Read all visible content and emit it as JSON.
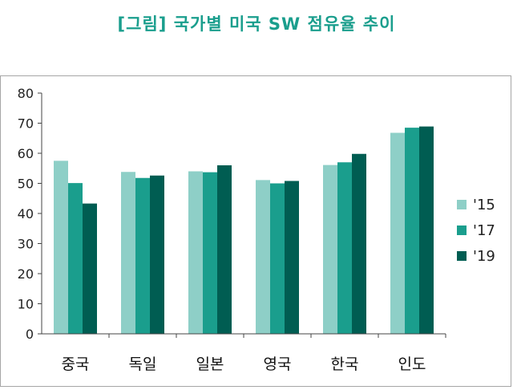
{
  "title": "[그림] 국가별 미국 SW 점유율 추이",
  "colors": {
    "title": "#1a9e8d",
    "s15": "#8ecfc7",
    "s17": "#1a9e8d",
    "s19": "#005d52"
  },
  "chart_data": {
    "type": "bar",
    "categories": [
      "중국",
      "독일",
      "일본",
      "영국",
      "한국",
      "인도"
    ],
    "series": [
      {
        "name": "'15",
        "values": [
          57.5,
          53.8,
          54.0,
          51.1,
          56.1,
          66.8
        ]
      },
      {
        "name": "'17",
        "values": [
          50.1,
          51.8,
          53.7,
          50.0,
          57.0,
          68.5
        ]
      },
      {
        "name": "'19",
        "values": [
          43.3,
          52.6,
          56.0,
          50.8,
          59.8,
          68.9
        ]
      }
    ],
    "ylim": [
      0,
      80
    ],
    "yticks": [
      0,
      10,
      20,
      30,
      40,
      50,
      60,
      70,
      80
    ],
    "grid": false,
    "legend": "right"
  }
}
